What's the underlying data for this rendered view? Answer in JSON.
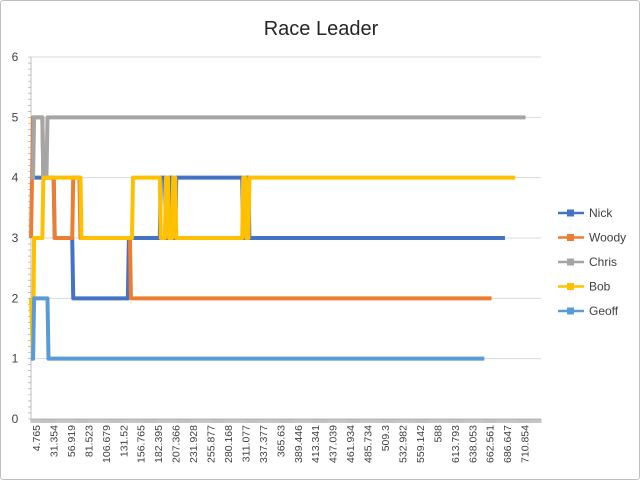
{
  "chart_data": {
    "type": "line",
    "title": "Race Leader",
    "xlabel": "",
    "ylabel": "",
    "ylim": [
      0,
      6
    ],
    "y_ticks": [
      "0",
      "1",
      "2",
      "3",
      "4",
      "5",
      "6"
    ],
    "x_tick_labels": [
      "4.765",
      "31.354",
      "56.919",
      "81.523",
      "106.679",
      "131.52",
      "156.765",
      "182.395",
      "207.366",
      "231.928",
      "255.877",
      "280.168",
      "311.077",
      "337.377",
      "365.63",
      "389.446",
      "413.341",
      "437.039",
      "461.934",
      "485.734",
      "509.3",
      "532.982",
      "559.142",
      "588",
      "613.793",
      "638.053",
      "662.561",
      "686.647",
      "710.854"
    ],
    "grid": "horizontal",
    "legend_position": "right",
    "series": [
      {
        "name": "Nick",
        "color": "#4472C4",
        "marker": true,
        "points": [
          [
            0,
            4
          ],
          [
            11,
            4
          ],
          [
            22,
            4
          ],
          [
            23,
            3
          ],
          [
            35,
            3
          ],
          [
            40,
            3
          ],
          [
            41,
            2
          ],
          [
            94,
            2
          ],
          [
            95,
            3
          ],
          [
            125,
            3
          ],
          [
            126,
            4
          ],
          [
            130,
            4
          ],
          [
            131,
            3
          ],
          [
            133,
            3
          ],
          [
            134,
            4
          ],
          [
            137,
            4
          ],
          [
            138,
            3
          ],
          [
            140,
            3
          ],
          [
            141,
            4
          ],
          [
            205,
            4
          ],
          [
            206,
            3
          ],
          [
            208,
            3
          ],
          [
            209,
            4
          ],
          [
            211,
            4
          ],
          [
            212,
            3
          ],
          [
            460,
            3
          ]
        ]
      },
      {
        "name": "Woody",
        "color": "#ED7D31",
        "marker": true,
        "points": [
          [
            0,
            3
          ],
          [
            2,
            5
          ],
          [
            11,
            5
          ],
          [
            12,
            4
          ],
          [
            22,
            4
          ],
          [
            23,
            3
          ],
          [
            35,
            3
          ],
          [
            40,
            3
          ],
          [
            41,
            4
          ],
          [
            47,
            4
          ],
          [
            48,
            3
          ],
          [
            96,
            3
          ],
          [
            97,
            2
          ],
          [
            447,
            2
          ]
        ]
      },
      {
        "name": "Chris",
        "color": "#A5A5A5",
        "marker": true,
        "points": [
          [
            0,
            4
          ],
          [
            2,
            4
          ],
          [
            3,
            5
          ],
          [
            11,
            5
          ],
          [
            12,
            4
          ],
          [
            15,
            4
          ],
          [
            16,
            5
          ],
          [
            480,
            5
          ]
        ]
      },
      {
        "name": "Bob",
        "color": "#FFC000",
        "marker": true,
        "points": [
          [
            0,
            2
          ],
          [
            2,
            1
          ],
          [
            3,
            3
          ],
          [
            11,
            3
          ],
          [
            12,
            4
          ],
          [
            48,
            4
          ],
          [
            49,
            3
          ],
          [
            98,
            3
          ],
          [
            99,
            4
          ],
          [
            125,
            4
          ],
          [
            126,
            3
          ],
          [
            130,
            3
          ],
          [
            131,
            4
          ],
          [
            133,
            4
          ],
          [
            134,
            3
          ],
          [
            137,
            3
          ],
          [
            138,
            4
          ],
          [
            140,
            4
          ],
          [
            141,
            3
          ],
          [
            205,
            3
          ],
          [
            206,
            4
          ],
          [
            208,
            4
          ],
          [
            209,
            3
          ],
          [
            211,
            3
          ],
          [
            212,
            4
          ],
          [
            470,
            4
          ]
        ]
      },
      {
        "name": "Geoff",
        "color": "#5B9BD5",
        "marker": true,
        "points": [
          [
            0,
            1
          ],
          [
            2,
            1
          ],
          [
            3,
            2
          ],
          [
            16,
            2
          ],
          [
            17,
            1
          ],
          [
            440,
            1
          ]
        ]
      }
    ]
  }
}
